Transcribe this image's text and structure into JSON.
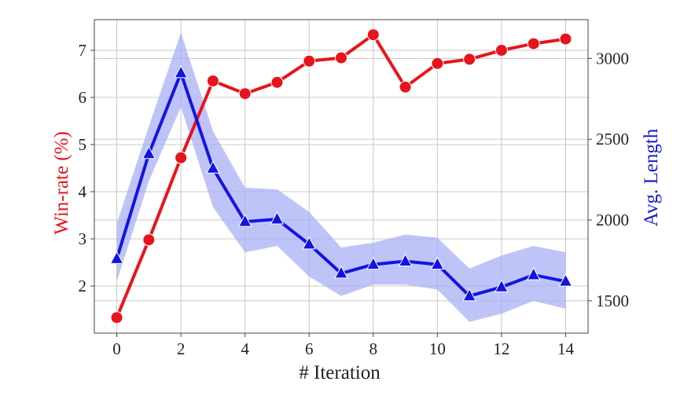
{
  "chart_data": {
    "type": "line",
    "xlabel": "# Iteration",
    "ylabel_left": "Win-rate (%)",
    "ylabel_right": "Avg. Length",
    "x_ticks": [
      0,
      2,
      4,
      6,
      8,
      10,
      12,
      14
    ],
    "y_left_ticks": [
      2,
      3,
      4,
      5,
      6,
      7
    ],
    "y_right_ticks": [
      1500,
      2000,
      2500,
      3000
    ],
    "xlim": [
      -0.7,
      14.7
    ],
    "ylim_left": [
      1.0,
      7.65
    ],
    "ylim_right": [
      1300,
      3240
    ],
    "grid": true,
    "colors": {
      "win_rate": "#e8141c",
      "avg_length": "#1414e0",
      "avg_length_band": "#aab0f5",
      "left_axis_title": "#e8141c",
      "right_axis_title": "#1a1acc"
    },
    "series": [
      {
        "axis": "left",
        "marker": "circle",
        "x": [
          0,
          1,
          2,
          3,
          4,
          5,
          6,
          7,
          8,
          9,
          10,
          11,
          12,
          13,
          14
        ],
        "values": [
          1.33,
          2.98,
          4.72,
          6.35,
          6.08,
          6.32,
          6.77,
          6.84,
          7.33,
          6.22,
          6.72,
          6.81,
          7.0,
          7.14,
          7.24
        ]
      },
      {
        "axis": "right",
        "marker": "triangle",
        "x": [
          0,
          1,
          2,
          3,
          4,
          5,
          6,
          7,
          8,
          9,
          10,
          11,
          12,
          13,
          14
        ],
        "values": [
          1760,
          2410,
          2910,
          2320,
          1990,
          2005,
          1850,
          1670,
          1725,
          1745,
          1725,
          1530,
          1585,
          1660,
          1620
        ],
        "band_upper": [
          1980,
          2580,
          3160,
          2550,
          2200,
          2190,
          2050,
          1830,
          1860,
          1910,
          1890,
          1700,
          1780,
          1840,
          1800
        ],
        "band_lower": [
          1620,
          2240,
          2700,
          2080,
          1800,
          1840,
          1650,
          1530,
          1600,
          1600,
          1570,
          1370,
          1420,
          1500,
          1450
        ]
      }
    ]
  }
}
